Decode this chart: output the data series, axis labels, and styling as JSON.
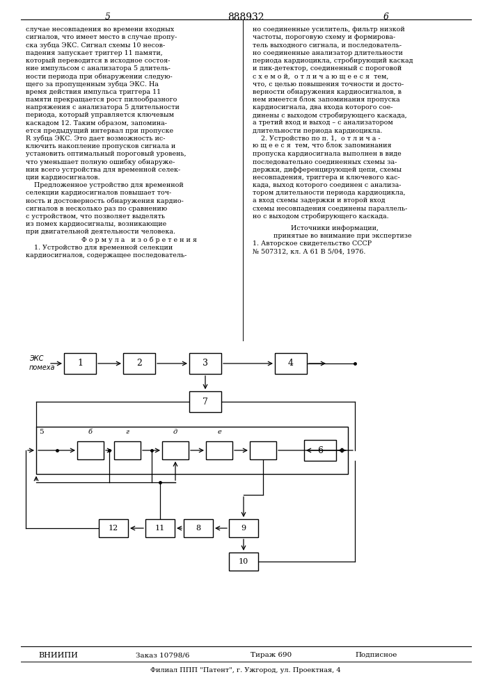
{
  "page_number_left": "5",
  "patent_number": "888932",
  "page_number_right": "6",
  "footer_org": "ВНИИПИ",
  "footer_order": "Заказ 10798/6",
  "footer_edition": "Тираж 690",
  "footer_type": "Подписное",
  "footer_address": "Филиал ППП \"Патент\", г. Ужгород, ул. Проектная, 4",
  "bg_color": "#ffffff",
  "line_color": "#000000",
  "text_color": "#000000",
  "left_col_lines": [
    "случае несовпадения во времени входных",
    "сигналов, что имеет место в случае пропу-",
    "ска зубца ЭКС. Сигнал схемы 10 несов-",
    "падения запускает триггер 11 памяти,",
    "который переводится в исходное состоя-",
    "ние импульсом с анализатора 5 длитель-",
    "ности периода при обнаружении следую-",
    "щего за пропущенным зубца ЭКС. На",
    "время действия импульса триггера 11",
    "памяти прекращается рост пилообразного",
    "напряжения с анализатора 5 длительности",
    "периода, который управляется ключевым",
    "каскадом 12. Таким образом, запомина-",
    "ется предыдущий интервал при пропуске",
    "R зубца ЭКС. Это дает возможность ис-",
    "ключить накопление пропусков сигнала и",
    "установить оптимальный пороговый уровень,",
    "что уменьшает полную ошибку обнаруже-",
    "ния всего устройства для временной селек-",
    "ции кардиосигналов.",
    "    Предложенное устройство для временной",
    "селекции кардиосигналов повышает точ-",
    "ность и достоверность обнаружения кардио-",
    "сигналов в несколько раз по сравнению",
    "с устройством, что позволяет выделять",
    "из помех кардиосигналы, возникающие",
    "при двигательной деятельности человека.",
    "Ф о р м у л а   и з о б р е т е н и я",
    "    1. Устройство для временной селекции",
    "кардиосигналов, содержащее последователь-"
  ],
  "right_col_lines": [
    "но соединенные усилитель, фильтр низкой",
    "частоты, пороговую схему и формирова-",
    "тель выходного сигнала, и последователь-",
    "но соединенные анализатор длительности",
    "периода кардиоцикла, стробирующий каскад",
    "и пик-детектор, соединенный с пороговой",
    "с х е м о й,  о т л и ч а ю щ е е с я  тем,",
    "что, с целью повышения точности и досто-",
    "верности обнаружения кардиосигналов, в",
    "нем имеется блок запоминания пропуска",
    "кардиосигнала, два входа которого сое-",
    "динены с выходом стробирующего каскада,",
    "а третий вход и выход – с анализатором",
    "длительности периода кардиоцикла.",
    "    2. Устройство по п. 1,  о т л и ч а -",
    "ю щ е е с я  тем, что блок запоминания",
    "пропуска кардиосигнала выполнен в виде",
    "последовательно соединенных схемы за-",
    "держки, дифференцирующей цепи, схемы",
    "несовпадения, триггера и ключевого кас-",
    "када, выход которого соединен с анализа-",
    "тором длительности периода кардиоцикла,",
    "а вход схемы задержки и второй вход",
    "схемы несовпадения соединены параллель-",
    "но с выходом стробирующего каскада."
  ],
  "formula_line_index": 27,
  "sources_lines": [
    "Источники информации,",
    "принятые во внимание при экспертизе",
    "1. Авторское свидетельство СССР",
    "№ 507312, кл. А 61 В 5/04, 1976."
  ]
}
